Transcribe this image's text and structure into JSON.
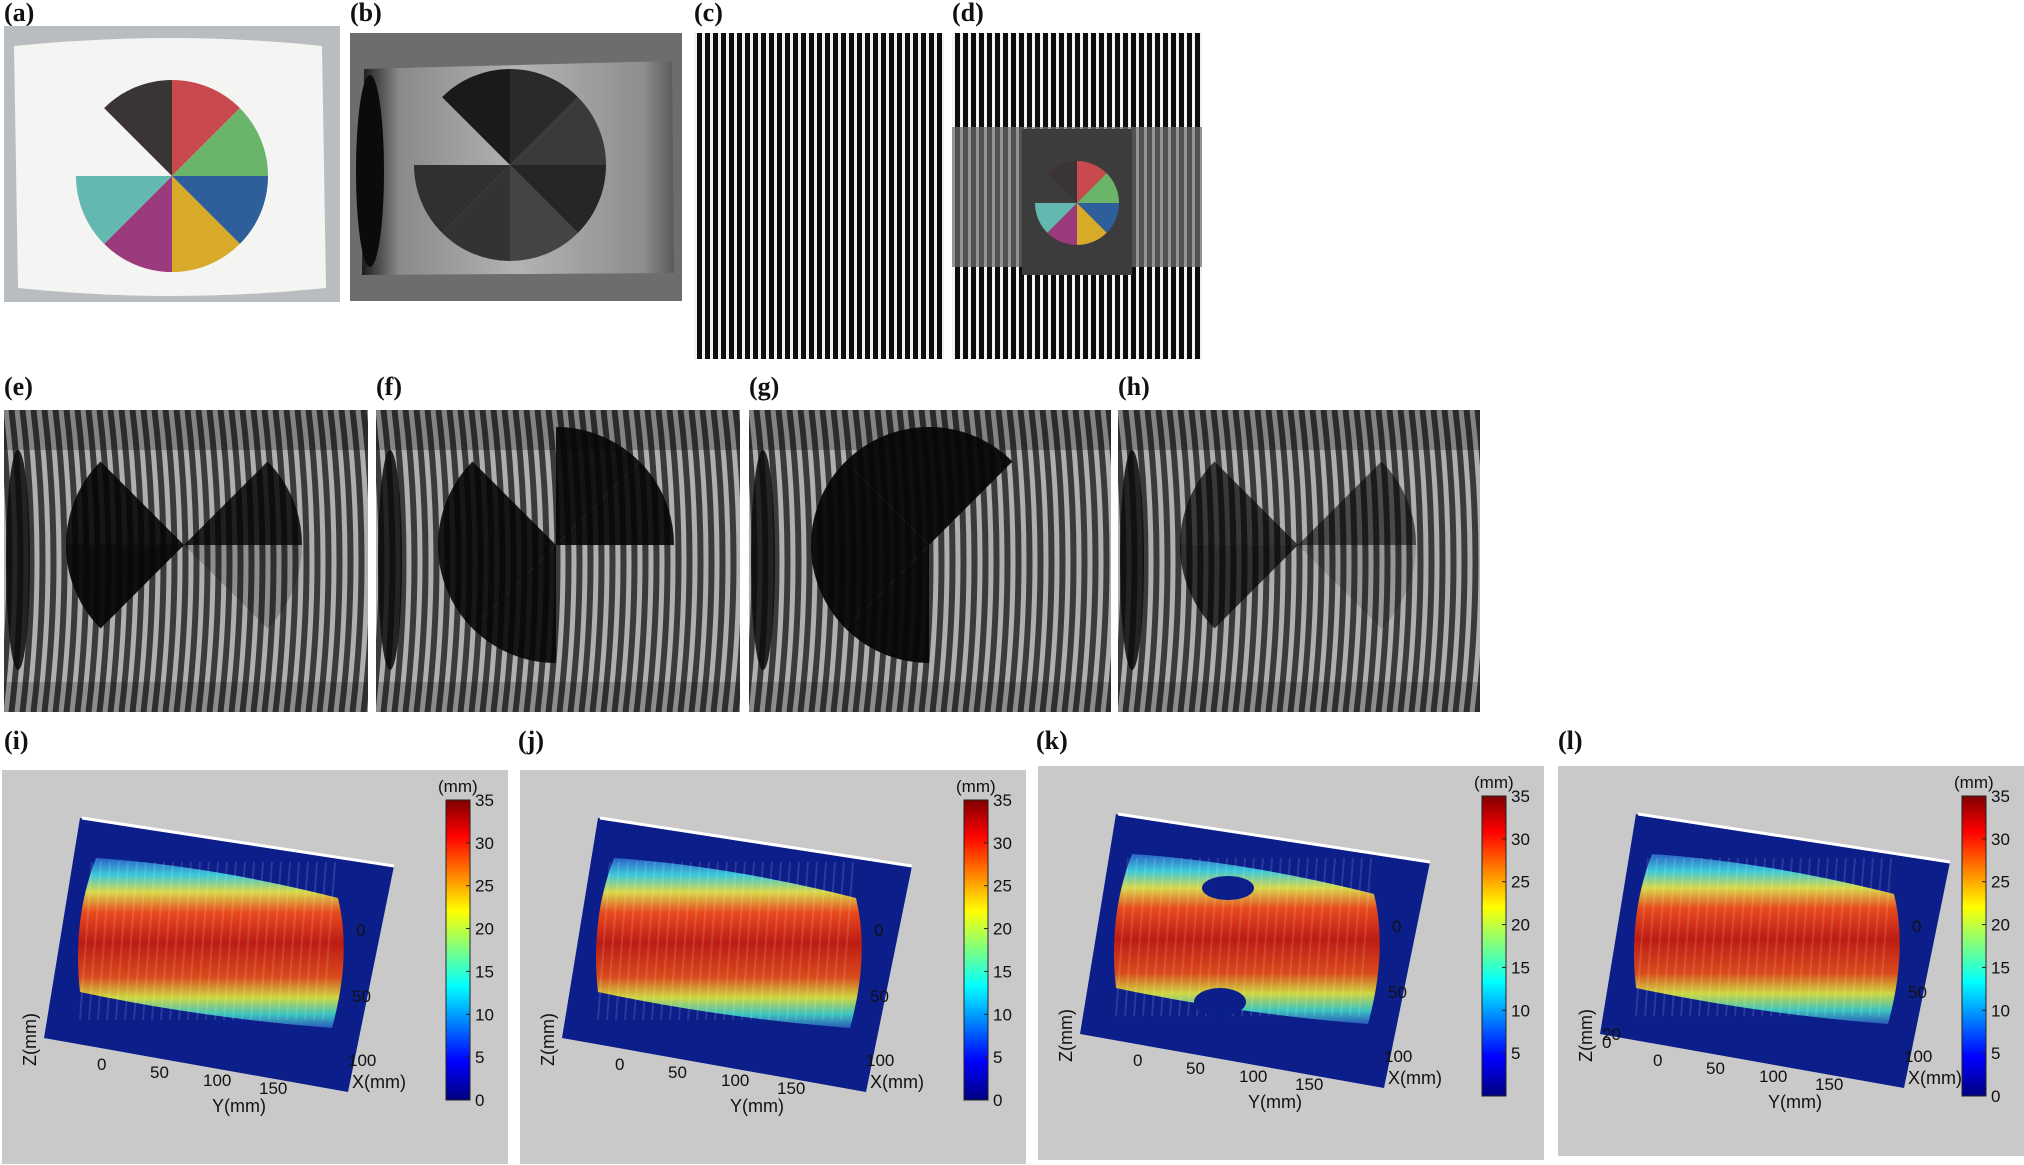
{
  "labels": {
    "a": "(a)",
    "b": "(b)",
    "c": "(c)",
    "d": "(d)",
    "e": "(e)",
    "f": "(f)",
    "g": "(g)",
    "h": "(h)",
    "i": "(i)",
    "j": "(j)",
    "k": "(k)",
    "l": "(l)"
  },
  "colors": {
    "pie": [
      "#c94a4e",
      "#6ab56a",
      "#2f5f9a",
      "#d8aa2a",
      "#9c3a7e",
      "#63b8b0",
      "#3a3434"
    ],
    "plot_bg": "#c9c9c9"
  },
  "surface_plots": [
    {
      "panel": "i",
      "colorbar": {
        "unit": "(mm)",
        "ticks": [
          "35",
          "30",
          "25",
          "20",
          "15",
          "10",
          "5",
          "0"
        ]
      },
      "x_axis": {
        "label": "X(mm)",
        "ticks": [
          "0",
          "50",
          "100"
        ]
      },
      "y_axis": {
        "label": "Y(mm)",
        "ticks": [
          "0",
          "50",
          "100",
          "150"
        ]
      },
      "z_axis": {
        "label": "Z(mm)",
        "ticks": []
      }
    },
    {
      "panel": "j",
      "colorbar": {
        "unit": "(mm)",
        "ticks": [
          "35",
          "30",
          "25",
          "20",
          "15",
          "10",
          "5",
          "0"
        ]
      },
      "x_axis": {
        "label": "X(mm)",
        "ticks": [
          "0",
          "50",
          "100"
        ]
      },
      "y_axis": {
        "label": "Y(mm)",
        "ticks": [
          "0",
          "50",
          "100",
          "150"
        ]
      },
      "z_axis": {
        "label": "Z(mm)",
        "ticks": []
      }
    },
    {
      "panel": "k",
      "colorbar": {
        "unit": "(mm)",
        "ticks": [
          "35",
          "30",
          "25",
          "20",
          "15",
          "10",
          "5"
        ]
      },
      "x_axis": {
        "label": "X(mm)",
        "ticks": [
          "0",
          "50",
          "100"
        ]
      },
      "y_axis": {
        "label": "Y(mm)",
        "ticks": [
          "0",
          "50",
          "100",
          "150"
        ]
      },
      "z_axis": {
        "label": "Z(mm)",
        "ticks": []
      }
    },
    {
      "panel": "l",
      "colorbar": {
        "unit": "(mm)",
        "ticks": [
          "35",
          "30",
          "25",
          "20",
          "15",
          "10",
          "5",
          "0"
        ]
      },
      "x_axis": {
        "label": "X(mm)",
        "ticks": [
          "0",
          "50",
          "100"
        ]
      },
      "y_axis": {
        "label": "Y(mm)",
        "ticks": [
          "0",
          "50",
          "100",
          "150"
        ]
      },
      "z_axis": {
        "label": "Z(mm)",
        "ticks": [
          "20",
          "0"
        ]
      }
    }
  ]
}
